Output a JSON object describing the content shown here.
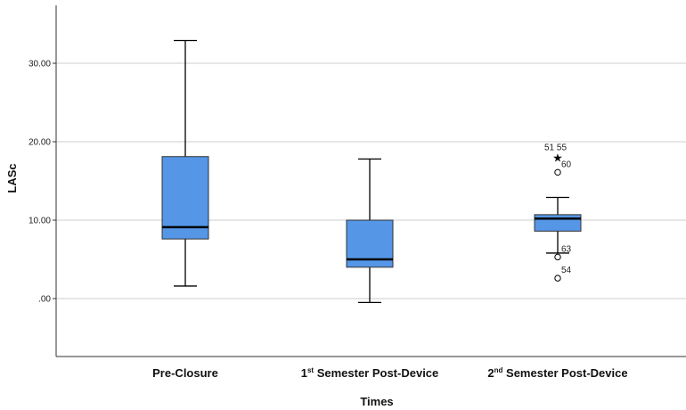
{
  "chart_data": {
    "type": "boxplot",
    "xlabel": "Times",
    "ylabel": "LASc",
    "ylim": [
      -7.5,
      37.5
    ],
    "yticks": [
      0,
      10,
      20,
      30
    ],
    "ytick_labels": [
      ".00",
      "10.00",
      "20.00",
      "30.00"
    ],
    "grid": true,
    "box_color": "#5596e6",
    "categories": [
      {
        "label": "Pre-Closure",
        "sup": "",
        "rest": ""
      },
      {
        "label": "1",
        "sup": "st",
        "rest": " Semester Post-Device"
      },
      {
        "label": "2",
        "sup": "nd",
        "rest": " Semester Post-Device"
      }
    ],
    "boxes": [
      {
        "whisker_low": 1.6,
        "q1": 7.6,
        "median": 9.1,
        "q3": 18.1,
        "whisker_high": 32.9,
        "outliers": []
      },
      {
        "whisker_low": -0.5,
        "q1": 4.0,
        "median": 5.0,
        "q3": 10.0,
        "whisker_high": 17.8,
        "outliers": []
      },
      {
        "whisker_low": 5.8,
        "q1": 8.6,
        "median": 10.2,
        "q3": 10.7,
        "whisker_high": 12.9,
        "outliers": [
          {
            "value": 18.0,
            "marker": "star",
            "label": "51  55"
          },
          {
            "value": 16.1,
            "marker": "circle",
            "label": "60"
          },
          {
            "value": 5.3,
            "marker": "circle",
            "label": "63"
          },
          {
            "value": 2.6,
            "marker": "circle",
            "label": "54"
          }
        ]
      }
    ]
  }
}
